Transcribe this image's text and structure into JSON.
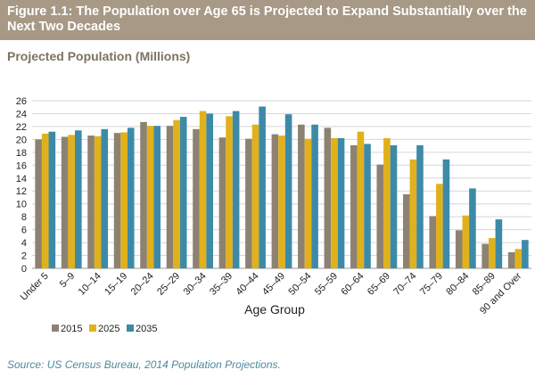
{
  "header": {
    "title": "Figure 1.1: The Population over Age 65 is Projected to Expand Substantially over the Next Two Decades"
  },
  "subtitle": "Projected Population (Millions)",
  "source": "Source: US Census Bureau, 2014 Population Projections.",
  "colors": {
    "header_bg": "#a79985",
    "s2015": "#8d8271",
    "s2025": "#e1b11c",
    "s2035": "#3d8aa8",
    "subtitle": "#7d7262",
    "source": "#4e8a9c"
  },
  "chart_data": {
    "type": "bar",
    "title": "",
    "xlabel": "Age Group",
    "ylabel": "",
    "ylim": [
      0,
      26
    ],
    "yticks": [
      0,
      2,
      4,
      6,
      8,
      10,
      12,
      14,
      16,
      18,
      20,
      22,
      24,
      26
    ],
    "grid": true,
    "legend_position": "bottom-left",
    "categories": [
      "Under 5",
      "5–9",
      "10–14",
      "15–19",
      "20–24",
      "25–29",
      "30–34",
      "35–39",
      "40–44",
      "45–49",
      "50–54",
      "55–59",
      "60–64",
      "65–69",
      "70–74",
      "75–79",
      "80–84",
      "85–89",
      "90 and Over"
    ],
    "series": [
      {
        "name": "2015",
        "color": "#8d8271",
        "values": [
          20.0,
          20.4,
          20.6,
          21.0,
          22.7,
          22.1,
          21.6,
          20.3,
          20.1,
          20.8,
          22.3,
          21.8,
          19.1,
          16.1,
          11.5,
          8.1,
          5.9,
          3.8,
          2.5
        ]
      },
      {
        "name": "2025",
        "color": "#e1b11c",
        "values": [
          20.9,
          20.7,
          20.5,
          21.1,
          22.1,
          23.0,
          24.4,
          23.6,
          22.3,
          20.6,
          20.1,
          20.2,
          21.2,
          20.2,
          16.9,
          13.1,
          8.2,
          4.7,
          3.0
        ]
      },
      {
        "name": "2035",
        "color": "#3d8aa8",
        "values": [
          21.2,
          21.4,
          21.6,
          21.8,
          22.1,
          23.5,
          24.0,
          24.4,
          25.1,
          23.9,
          22.3,
          20.2,
          19.3,
          19.1,
          19.1,
          16.9,
          12.4,
          7.6,
          4.4
        ]
      }
    ]
  }
}
